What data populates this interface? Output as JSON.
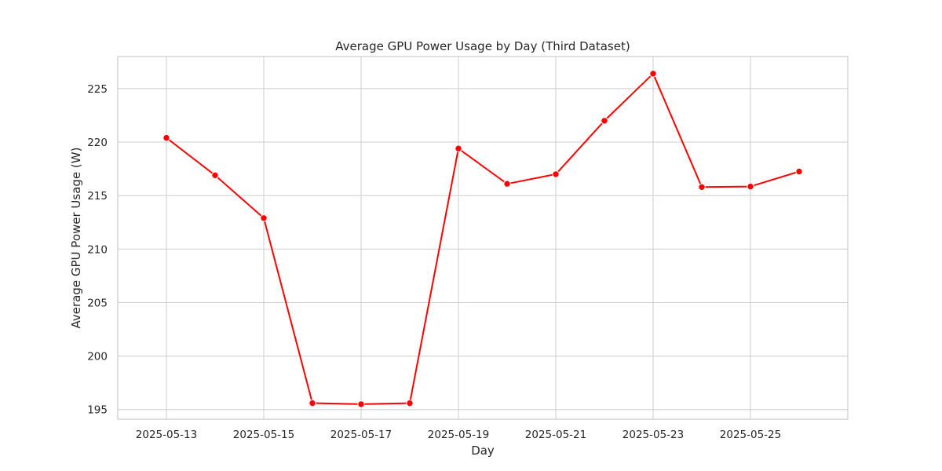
{
  "chart_data": {
    "type": "line",
    "title": "Average GPU Power Usage by Day (Third Dataset)",
    "xlabel": "Day",
    "ylabel": "Average GPU Power Usage (W)",
    "x": [
      "2025-05-13",
      "2025-05-14",
      "2025-05-15",
      "2025-05-16",
      "2025-05-17",
      "2025-05-18",
      "2025-05-19",
      "2025-05-20",
      "2025-05-21",
      "2025-05-22",
      "2025-05-23",
      "2025-05-24",
      "2025-05-25",
      "2025-05-26"
    ],
    "xticks": [
      "2025-05-13",
      "2025-05-15",
      "2025-05-17",
      "2025-05-19",
      "2025-05-21",
      "2025-05-23",
      "2025-05-25"
    ],
    "xlim": [
      "2025-05-12",
      "2025-05-27"
    ],
    "yticks": [
      195,
      200,
      205,
      210,
      215,
      220,
      225
    ],
    "ylim": [
      194.1,
      228.0
    ],
    "series": [
      {
        "values": [
          220.4,
          216.9,
          212.9,
          195.6,
          195.5,
          195.6,
          219.4,
          216.1,
          217.0,
          222.0,
          226.4,
          215.8,
          215.85,
          217.25
        ],
        "color": "#ff0000"
      }
    ],
    "grid": true
  }
}
